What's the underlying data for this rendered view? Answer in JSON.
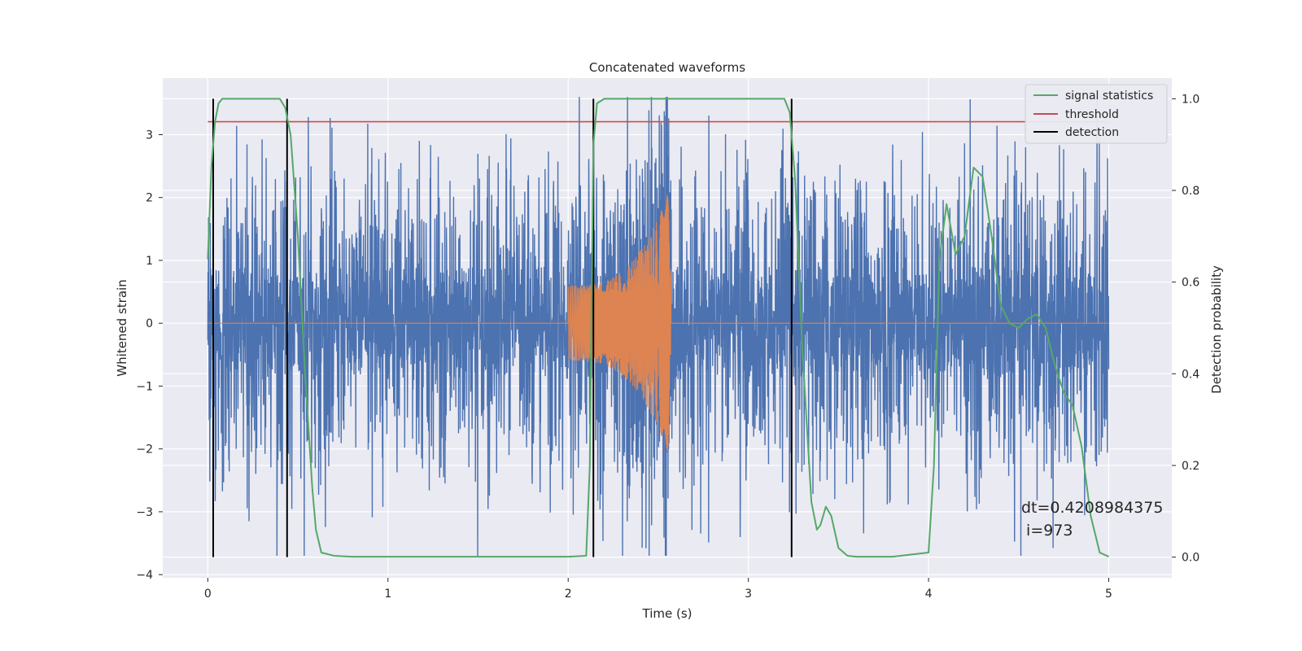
{
  "chart_data": {
    "type": "line",
    "title": "Concatenated waveforms",
    "xlabel": "Time (s)",
    "ylabel": "Whitened strain",
    "y2label": "Detection probability",
    "xlim": [
      -0.25,
      5.35
    ],
    "ylim": [
      -4.05,
      3.9
    ],
    "y2lim": [
      -0.045,
      1.045
    ],
    "x_ticks": [
      "0",
      "1",
      "2",
      "3",
      "4",
      "5"
    ],
    "y_ticks": [
      "−4",
      "−3",
      "−2",
      "−1",
      "0",
      "1",
      "2",
      "3"
    ],
    "y2_ticks": [
      "0.0",
      "0.2",
      "0.4",
      "0.6",
      "0.8",
      "1.0"
    ],
    "grid": true,
    "legend_position": "top-right",
    "legend": [
      {
        "name": "signal statistics",
        "color": "#55a868"
      },
      {
        "name": "threshold",
        "color": "#c44e52"
      },
      {
        "name": "detection",
        "color": "#000000"
      }
    ],
    "series": [
      {
        "name": "whitened strain",
        "color": "#4c72b0",
        "axis": "left",
        "x_range": [
          0,
          5
        ],
        "amplitude_envelope": [
          -3.7,
          3.6
        ],
        "description": "noise-like"
      },
      {
        "name": "injected waveform",
        "color": "#dd8452",
        "axis": "left",
        "x_range": [
          0,
          5
        ],
        "chirp_start": 2.0,
        "chirp_end": 2.57,
        "chirp_peak": [
          2.25,
          -2.0
        ]
      },
      {
        "name": "signal statistics",
        "color": "#55a868",
        "axis": "right",
        "x": [
          0,
          0.02,
          0.04,
          0.06,
          0.08,
          0.1,
          0.12,
          0.2,
          0.3,
          0.4,
          0.43,
          0.46,
          0.5,
          0.54,
          0.58,
          0.6,
          0.63,
          0.7,
          0.8,
          1.0,
          1.5,
          2.0,
          2.1,
          2.12,
          2.14,
          2.16,
          2.2,
          2.5,
          3.0,
          3.2,
          3.23,
          3.26,
          3.3,
          3.35,
          3.38,
          3.4,
          3.43,
          3.46,
          3.5,
          3.55,
          3.6,
          3.8,
          4.0,
          4.03,
          4.06,
          4.1,
          4.15,
          4.2,
          4.25,
          4.3,
          4.35,
          4.4,
          4.45,
          4.5,
          4.55,
          4.6,
          4.65,
          4.7,
          4.75,
          4.8,
          4.85,
          4.9,
          4.95,
          5.0
        ],
        "values": [
          0.65,
          0.85,
          0.95,
          0.99,
          1.0,
          1.0,
          1.0,
          1.0,
          1.0,
          1.0,
          0.98,
          0.92,
          0.7,
          0.4,
          0.15,
          0.06,
          0.01,
          0.003,
          0.001,
          0.001,
          0.001,
          0.001,
          0.003,
          0.2,
          0.9,
          0.99,
          1.0,
          1.0,
          1.0,
          1.0,
          0.97,
          0.82,
          0.45,
          0.12,
          0.06,
          0.07,
          0.11,
          0.09,
          0.02,
          0.003,
          0.001,
          0.001,
          0.01,
          0.2,
          0.65,
          0.77,
          0.66,
          0.7,
          0.85,
          0.83,
          0.7,
          0.55,
          0.51,
          0.5,
          0.52,
          0.53,
          0.5,
          0.42,
          0.36,
          0.33,
          0.24,
          0.09,
          0.01,
          0.001
        ]
      },
      {
        "name": "threshold",
        "color": "#c44e52",
        "axis": "right",
        "x": [
          0,
          5
        ],
        "values": [
          0.95,
          0.95
        ]
      },
      {
        "name": "detection",
        "color": "#000000",
        "axis": "right",
        "x": [
          0.03,
          0.44,
          2.14,
          3.24
        ],
        "y_range": [
          0,
          1
        ]
      }
    ],
    "annotations": [
      "dt=0.4208984375",
      " i=973"
    ]
  }
}
